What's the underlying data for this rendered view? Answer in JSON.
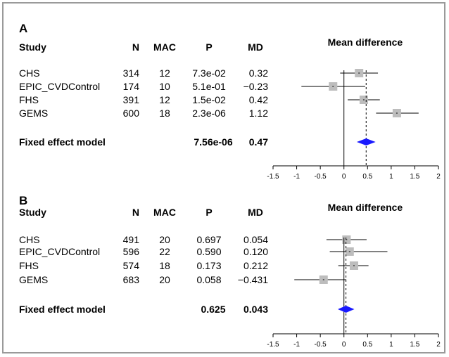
{
  "chart_data": [
    {
      "type": "forest",
      "panel_label": "A",
      "title": "Mean difference",
      "columns": [
        "Study",
        "N",
        "MAC",
        "P",
        "MD"
      ],
      "studies": [
        {
          "study": "CHS",
          "n": "314",
          "mac": "12",
          "p": "7.3e-02",
          "md": "0.32",
          "estimate": 0.32,
          "ci": [
            -0.08,
            0.72
          ]
        },
        {
          "study": "EPIC_CVDControl",
          "n": "174",
          "mac": "10",
          "p": "5.1e-01",
          "md": "−0.23",
          "estimate": -0.23,
          "ci": [
            -0.9,
            0.45
          ]
        },
        {
          "study": "FHS",
          "n": "391",
          "mac": "12",
          "p": "1.5e-02",
          "md": "0.42",
          "estimate": 0.42,
          "ci": [
            0.08,
            0.76
          ]
        },
        {
          "study": "GEMS",
          "n": "600",
          "mac": "18",
          "p": "2.3e-06",
          "md": "1.12",
          "estimate": 1.12,
          "ci": [
            0.68,
            1.58
          ]
        }
      ],
      "fixed_effect": {
        "label": "Fixed effect model",
        "p": "7.56e-06",
        "md": "0.47",
        "estimate": 0.47,
        "ci": [
          0.27,
          0.67
        ]
      },
      "x_ticks": [
        "-1.5",
        "-1",
        "-0.5",
        "0",
        "0.5",
        "1",
        "1.5",
        "2"
      ],
      "xlim": [
        -1.5,
        2
      ],
      "colors": {
        "study_box": "#bdbdbd",
        "summary": "#1a1aff",
        "line": "#000000"
      }
    },
    {
      "type": "forest",
      "panel_label": "B",
      "title": "Mean difference",
      "columns": [
        "Study",
        "N",
        "MAC",
        "P",
        "MD"
      ],
      "studies": [
        {
          "study": "CHS",
          "n": "491",
          "mac": "20",
          "p": "0.697",
          "md": "0.054",
          "estimate": 0.054,
          "ci": [
            -0.37,
            0.48
          ]
        },
        {
          "study": "EPIC_CVDControl",
          "n": "596",
          "mac": "22",
          "p": "0.590",
          "md": "0.120",
          "estimate": 0.12,
          "ci": [
            -0.3,
            0.92
          ]
        },
        {
          "study": "FHS",
          "n": "574",
          "mac": "18",
          "p": "0.173",
          "md": "0.212",
          "estimate": 0.212,
          "ci": [
            -0.12,
            0.52
          ]
        },
        {
          "study": "GEMS",
          "n": "683",
          "mac": "20",
          "p": "0.058",
          "md": "−0.431",
          "estimate": -0.431,
          "ci": [
            -1.05,
            0.05
          ]
        }
      ],
      "fixed_effect": {
        "label": "Fixed effect model",
        "p": "0.625",
        "md": "0.043",
        "estimate": 0.043,
        "ci": [
          -0.13,
          0.22
        ]
      },
      "x_ticks": [
        "-1.5",
        "-1",
        "-0.5",
        "0",
        "0.5",
        "1",
        "1.5",
        "2"
      ],
      "xlim": [
        -1.5,
        2
      ],
      "colors": {
        "study_box": "#bdbdbd",
        "summary": "#1a1aff",
        "line": "#000000"
      }
    }
  ]
}
